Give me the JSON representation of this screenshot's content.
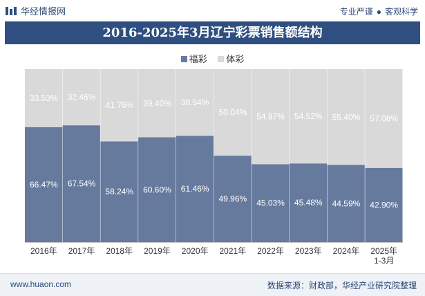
{
  "header": {
    "brand": "华经情报网",
    "slogan_left": "专业严谨",
    "slogan_right": "客观科学"
  },
  "title": "2016-2025年3月辽宁彩票销售额结构",
  "footer": {
    "site": "www.huaon.com",
    "source": "数据来源：财政部，华经产业研究院整理"
  },
  "colors": {
    "fucai": "#667a9e",
    "ticai": "#d9d9d9",
    "brand": "#2f4f80"
  },
  "chart_data": {
    "type": "bar",
    "stacked": true,
    "title": "2016-2025年3月辽宁彩票销售额结构",
    "categories": [
      "2016年",
      "2017年",
      "2018年",
      "2019年",
      "2020年",
      "2021年",
      "2022年",
      "2023年",
      "2024年",
      "2025年\n1-3月"
    ],
    "series": [
      {
        "name": "福彩",
        "values": [
          66.47,
          67.54,
          58.24,
          60.6,
          61.46,
          49.96,
          45.03,
          45.48,
          44.59,
          42.9
        ],
        "labels": [
          "66.47%",
          "67.54%",
          "58.24%",
          "60.60%",
          "61.46%",
          "49.96%",
          "45.03%",
          "45.48%",
          "44.59%",
          "42.90%"
        ]
      },
      {
        "name": "体彩",
        "values": [
          33.53,
          32.46,
          41.76,
          39.4,
          38.54,
          50.04,
          54.97,
          54.52,
          55.4,
          57.08
        ],
        "labels": [
          "33.53%",
          "32.46%",
          "41.76%",
          "39.40%",
          "38.54%",
          "50.04%",
          "54.97%",
          "54.52%",
          "55.40%",
          "57.08%"
        ]
      }
    ],
    "ylim": [
      0,
      100
    ],
    "unit": "%",
    "legend": "top-center"
  }
}
